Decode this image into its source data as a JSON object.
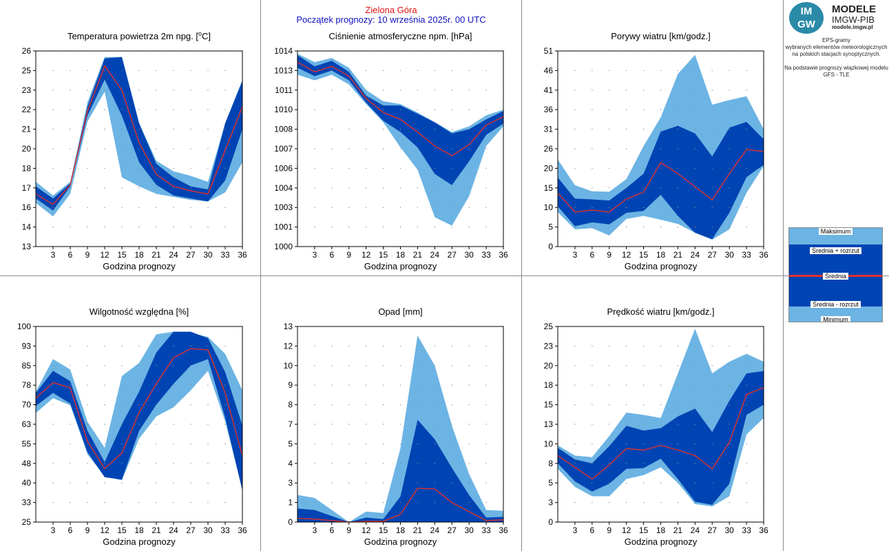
{
  "header": {
    "station": "Zielona Góra",
    "forecast_start": "Początek prognozy: 10 września 2025r. 00 UTC"
  },
  "logo": {
    "mark_top": "IM",
    "mark_bottom": "GW",
    "name": "MODELE",
    "org": "IMGW-PIB",
    "url": "modele.imgw.pl"
  },
  "description": {
    "line1": "EPS-gramy",
    "line2": "wybranych elementów meteorologicznych",
    "line3": "na polskich stacjach  synoptycznych.",
    "line4": "Na podstawie prognozy wiązkowej modelu",
    "line5": "GFS - TLE"
  },
  "legend": {
    "max": "Maksimum",
    "plus": "Średnia + rozrzut",
    "mean": "Średnia",
    "minus": "Średnia - rozrzut",
    "min": "Minimum"
  },
  "colors": {
    "envelope": "#6cb4e4",
    "spread": "#0044b3",
    "mean": "#e0302a",
    "station_title": "#e01010",
    "forecast_title": "#1010c0"
  },
  "chart_data": [
    {
      "id": "temperature",
      "type": "area",
      "title": "Temperatura powietrza 2m npg.",
      "title_unit": "[°C]",
      "title_unit_parts": [
        "[",
        "o",
        "C]"
      ],
      "xlabel": "Godzina prognozy",
      "x": [
        0,
        3,
        6,
        9,
        12,
        15,
        18,
        21,
        24,
        27,
        30,
        33,
        36
      ],
      "xticks": [
        "3",
        "6",
        "9",
        "12",
        "15",
        "18",
        "21",
        "24",
        "27",
        "30",
        "33",
        "36"
      ],
      "ylim": [
        13,
        26
      ],
      "yticks": [
        {
          "v": 13,
          "t": "13"
        },
        {
          "v": 14.3,
          "t": "14"
        },
        {
          "v": 15.6,
          "t": "16"
        },
        {
          "v": 16.9,
          "t": "17"
        },
        {
          "v": 18.2,
          "t": "18"
        },
        {
          "v": 19.5,
          "t": "20"
        },
        {
          "v": 20.8,
          "t": "21"
        },
        {
          "v": 22.1,
          "t": "22"
        },
        {
          "v": 23.4,
          "t": "23"
        },
        {
          "v": 24.7,
          "t": "25"
        },
        {
          "v": 26,
          "t": "26"
        }
      ],
      "min": [
        15.9,
        15.0,
        16.5,
        21.3,
        23.3,
        17.6,
        17.0,
        16.5,
        16.3,
        16.1,
        16.0,
        16.6,
        18.6
      ],
      "minus": [
        16.2,
        15.4,
        17.0,
        21.7,
        24.1,
        21.7,
        18.6,
        17.1,
        16.4,
        16.2,
        16.0,
        17.4,
        20.8
      ],
      "mean": [
        16.5,
        15.8,
        17.1,
        22.0,
        25.0,
        23.4,
        19.9,
        17.8,
        17.0,
        16.7,
        16.5,
        19.4,
        22.3
      ],
      "plus": [
        17.0,
        16.2,
        17.2,
        22.3,
        25.5,
        25.6,
        21.2,
        18.5,
        17.6,
        17.0,
        16.8,
        21.2,
        24.0
      ],
      "max": [
        17.3,
        16.4,
        17.3,
        22.6,
        25.6,
        25.6,
        21.2,
        18.7,
        18.0,
        17.7,
        17.3,
        21.2,
        24.1
      ]
    },
    {
      "id": "pressure",
      "type": "area",
      "title": "Ciśnienie atmosferyczne npm. [hPa]",
      "xlabel": "Godzina prognozy",
      "x": [
        0,
        3,
        6,
        9,
        12,
        15,
        18,
        21,
        24,
        27,
        30,
        33,
        36
      ],
      "xticks": [
        "3",
        "6",
        "9",
        "12",
        "15",
        "18",
        "21",
        "24",
        "27",
        "30",
        "33",
        "36"
      ],
      "ylim": [
        1000,
        1014
      ],
      "yticks": [
        {
          "v": 1000,
          "t": "1000"
        },
        {
          "v": 1001.4,
          "t": "1001"
        },
        {
          "v": 1002.8,
          "t": "1003"
        },
        {
          "v": 1004.2,
          "t": "1004"
        },
        {
          "v": 1005.6,
          "t": "1006"
        },
        {
          "v": 1007,
          "t": "1007"
        },
        {
          "v": 1008.4,
          "t": "1008"
        },
        {
          "v": 1009.8,
          "t": "1010"
        },
        {
          "v": 1011.2,
          "t": "1011"
        },
        {
          "v": 1012.6,
          "t": "1013"
        },
        {
          "v": 1014,
          "t": "1014"
        }
      ],
      "min": [
        1012.3,
        1011.9,
        1012.3,
        1011.6,
        1010.2,
        1008.9,
        1007.1,
        1005.5,
        1002.1,
        1001.5,
        1003.6,
        1007.2,
        1008.6
      ],
      "minus": [
        1012.8,
        1012.2,
        1012.6,
        1011.9,
        1010.3,
        1009.0,
        1008.2,
        1007.1,
        1005.2,
        1004.4,
        1006.1,
        1008.0,
        1008.8
      ],
      "mean": [
        1013.2,
        1012.5,
        1012.9,
        1012.2,
        1010.6,
        1009.6,
        1009.1,
        1008.2,
        1007.2,
        1006.5,
        1007.3,
        1008.7,
        1009.3
      ],
      "plus": [
        1013.7,
        1012.9,
        1013.3,
        1012.5,
        1010.8,
        1010.1,
        1010.1,
        1009.5,
        1008.9,
        1008.1,
        1008.4,
        1009.1,
        1009.7
      ],
      "max": [
        1013.8,
        1013.2,
        1013.5,
        1012.8,
        1011.2,
        1010.4,
        1010.2,
        1009.6,
        1008.9,
        1008.2,
        1008.6,
        1009.4,
        1009.8
      ]
    },
    {
      "id": "gusts",
      "type": "area",
      "title": "Porywy wiatru [km/godz.]",
      "xlabel": "Godzina prognozy",
      "x": [
        0,
        3,
        6,
        9,
        12,
        15,
        18,
        21,
        24,
        27,
        30,
        33,
        36
      ],
      "xticks": [
        "3",
        "6",
        "9",
        "12",
        "15",
        "18",
        "21",
        "24",
        "27",
        "30",
        "33",
        "36"
      ],
      "ylim": [
        0,
        51
      ],
      "yticks": [
        {
          "v": 0,
          "t": "0"
        },
        {
          "v": 5.1,
          "t": "5"
        },
        {
          "v": 10.2,
          "t": "10"
        },
        {
          "v": 15.3,
          "t": "15"
        },
        {
          "v": 20.4,
          "t": "20"
        },
        {
          "v": 25.5,
          "t": "26"
        },
        {
          "v": 30.6,
          "t": "31"
        },
        {
          "v": 35.7,
          "t": "36"
        },
        {
          "v": 40.8,
          "t": "41"
        },
        {
          "v": 45.9,
          "t": "46"
        },
        {
          "v": 51,
          "t": "51"
        }
      ],
      "min": [
        9.0,
        4.5,
        4.8,
        2.9,
        7.2,
        8.0,
        7.0,
        5.9,
        3.6,
        1.8,
        4.5,
        14.0,
        21.0
      ],
      "minus": [
        10.5,
        5.3,
        6.3,
        5.8,
        8.8,
        9.3,
        13.5,
        8.0,
        3.6,
        1.9,
        8.8,
        18.1,
        21.3
      ],
      "mean": [
        14.0,
        9.0,
        9.5,
        9.0,
        12.4,
        14.2,
        21.9,
        19.0,
        15.6,
        12.2,
        19.0,
        25.3,
        24.8
      ],
      "plus": [
        18.0,
        12.5,
        12.3,
        12.0,
        15.3,
        19.0,
        30.0,
        31.5,
        29.5,
        23.5,
        31.0,
        32.5,
        28.0
      ],
      "max": [
        22.7,
        16.0,
        14.4,
        14.3,
        17.6,
        26.2,
        33.7,
        45.0,
        50.0,
        37.0,
        38.2,
        39.2,
        30.6
      ]
    },
    {
      "id": "humidity",
      "type": "area",
      "title": "Wilgotność względna [%]",
      "xlabel": "Godzina prognozy",
      "x": [
        0,
        3,
        6,
        9,
        12,
        15,
        18,
        21,
        24,
        27,
        30,
        33,
        36
      ],
      "xticks": [
        "3",
        "6",
        "9",
        "12",
        "15",
        "18",
        "21",
        "24",
        "27",
        "30",
        "33",
        "36"
      ],
      "ylim": [
        25,
        100
      ],
      "yticks": [
        {
          "v": 25,
          "t": "25"
        },
        {
          "v": 32.5,
          "t": "33"
        },
        {
          "v": 40,
          "t": "40"
        },
        {
          "v": 47.5,
          "t": "48"
        },
        {
          "v": 55,
          "t": "55"
        },
        {
          "v": 62.5,
          "t": "63"
        },
        {
          "v": 70,
          "t": "70"
        },
        {
          "v": 77.5,
          "t": "78"
        },
        {
          "v": 85,
          "t": "85"
        },
        {
          "v": 92.5,
          "t": "93"
        },
        {
          "v": 100,
          "t": "100"
        }
      ],
      "min": [
        66.8,
        72.5,
        69.8,
        51.0,
        42.5,
        41.0,
        57.0,
        65.5,
        69.0,
        75.5,
        83.0,
        63.5,
        37.5
      ],
      "minus": [
        69.5,
        74.5,
        70.5,
        51.8,
        42.2,
        41.3,
        60.0,
        70.0,
        78.0,
        85.0,
        87.5,
        65.0,
        37.0
      ],
      "mean": [
        72.5,
        78.5,
        76.5,
        56.0,
        45.5,
        51.5,
        67.0,
        78.0,
        88.0,
        91.5,
        91.0,
        74.5,
        50.5
      ],
      "plus": [
        74.5,
        83.0,
        79.0,
        60.0,
        48.0,
        62.5,
        75.0,
        90.0,
        98.0,
        98.0,
        95.5,
        82.5,
        62.0
      ],
      "max": [
        75.0,
        87.5,
        83.5,
        63.5,
        53.5,
        81.0,
        86.0,
        97.0,
        98.0,
        97.5,
        96.0,
        89.5,
        75.5
      ]
    },
    {
      "id": "precipitation",
      "type": "area",
      "title": "Opad [mm]",
      "xlabel": "Godzina prognozy",
      "x": [
        0,
        3,
        6,
        9,
        12,
        15,
        18,
        21,
        24,
        27,
        30,
        33,
        36
      ],
      "xticks": [
        "3",
        "6",
        "9",
        "12",
        "15",
        "18",
        "21",
        "24",
        "27",
        "30",
        "33",
        "36"
      ],
      "ylim": [
        0,
        13
      ],
      "yticks": [
        {
          "v": 0,
          "t": "0"
        },
        {
          "v": 1.3,
          "t": "1"
        },
        {
          "v": 2.6,
          "t": "3"
        },
        {
          "v": 3.9,
          "t": "4"
        },
        {
          "v": 5.2,
          "t": "5"
        },
        {
          "v": 6.5,
          "t": "7"
        },
        {
          "v": 7.8,
          "t": "8"
        },
        {
          "v": 9.1,
          "t": "9"
        },
        {
          "v": 10.4,
          "t": "10"
        },
        {
          "v": 11.7,
          "t": "12"
        },
        {
          "v": 13,
          "t": "13"
        }
      ],
      "min": [
        0,
        0,
        0,
        0,
        0,
        0,
        0,
        0,
        0,
        0,
        0,
        0,
        0
      ],
      "minus": [
        0,
        0,
        0,
        0,
        0,
        0,
        0,
        0,
        0,
        0,
        0,
        0,
        0
      ],
      "mean": [
        0.25,
        0.2,
        0.1,
        0,
        0.05,
        0.05,
        0.5,
        2.25,
        2.2,
        1.3,
        0.7,
        0.1,
        0.15
      ],
      "plus": [
        0.9,
        0.8,
        0.4,
        0,
        0.3,
        0.2,
        1.7,
        6.8,
        5.5,
        3.6,
        1.8,
        0.3,
        0.35
      ],
      "max": [
        1.8,
        1.6,
        0.8,
        0,
        0.7,
        0.6,
        4.9,
        12.4,
        10.4,
        6.4,
        3.2,
        0.8,
        0.75
      ]
    },
    {
      "id": "wind-speed",
      "type": "area",
      "title": "Prędkość wiatru [km/godz.]",
      "xlabel": "Godzina prognozy",
      "x": [
        0,
        3,
        6,
        9,
        12,
        15,
        18,
        21,
        24,
        27,
        30,
        33,
        36
      ],
      "xticks": [
        "3",
        "6",
        "9",
        "12",
        "15",
        "18",
        "21",
        "24",
        "27",
        "30",
        "33",
        "36"
      ],
      "ylim": [
        0,
        25
      ],
      "yticks": [
        {
          "v": 0,
          "t": "0"
        },
        {
          "v": 2.5,
          "t": "3"
        },
        {
          "v": 5,
          "t": "5"
        },
        {
          "v": 7.5,
          "t": "8"
        },
        {
          "v": 10,
          "t": "10"
        },
        {
          "v": 12.5,
          "t": "13"
        },
        {
          "v": 15,
          "t": "15"
        },
        {
          "v": 17.5,
          "t": "18"
        },
        {
          "v": 20,
          "t": "20"
        },
        {
          "v": 22.5,
          "t": "23"
        },
        {
          "v": 25,
          "t": "25"
        }
      ],
      "min": [
        6.8,
        4.5,
        3.3,
        3.3,
        5.5,
        6.0,
        7.0,
        5.0,
        2.3,
        2.0,
        3.3,
        11.2,
        13.3
      ],
      "minus": [
        7.5,
        5.2,
        3.9,
        4.9,
        6.8,
        6.9,
        8.1,
        5.5,
        2.6,
        2.2,
        4.9,
        13.7,
        15.0
      ],
      "mean": [
        8.5,
        7.0,
        5.5,
        7.3,
        9.4,
        9.2,
        9.8,
        9.2,
        8.5,
        6.8,
        10.2,
        16.3,
        17.2
      ],
      "plus": [
        9.5,
        8.0,
        7.5,
        9.7,
        12.3,
        11.7,
        12.0,
        13.5,
        14.5,
        11.5,
        15.5,
        19.0,
        19.3
      ],
      "max": [
        9.8,
        8.5,
        8.3,
        11.0,
        14.0,
        13.7,
        13.3,
        19.0,
        24.7,
        19.0,
        20.5,
        21.5,
        20.5
      ]
    }
  ]
}
